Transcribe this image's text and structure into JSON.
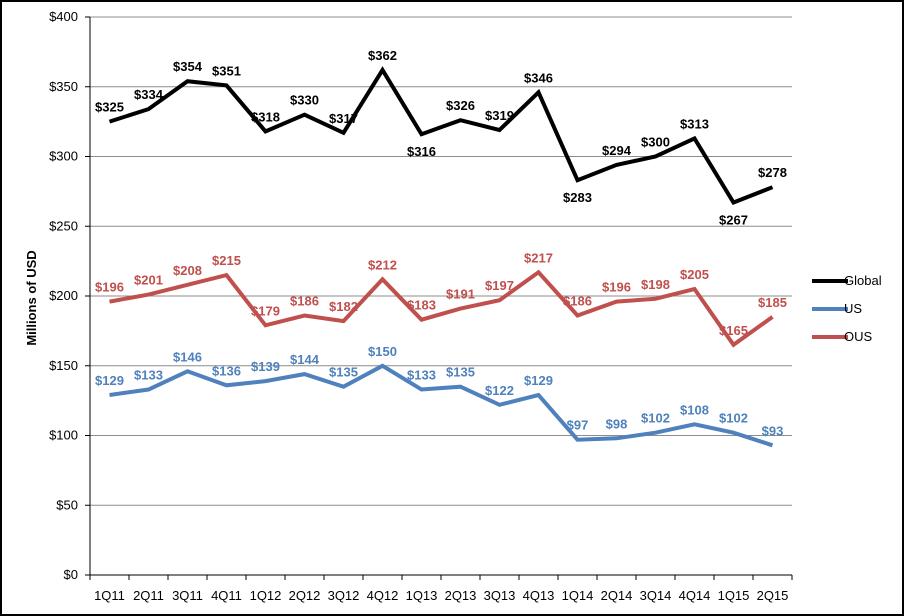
{
  "chart_data": {
    "type": "line",
    "title": "",
    "xlabel": "",
    "ylabel": "Millions of USD",
    "ylim": [
      0,
      400
    ],
    "yticks": [
      0,
      50,
      100,
      150,
      200,
      250,
      300,
      350,
      400
    ],
    "ytick_labels": [
      "$0",
      "$50",
      "$100",
      "$150",
      "$200",
      "$250",
      "$300",
      "$350",
      "$400"
    ],
    "grid": "horizontal",
    "legend_position": "right",
    "categories": [
      "1Q11",
      "2Q11",
      "3Q11",
      "4Q11",
      "1Q12",
      "2Q12",
      "3Q12",
      "4Q12",
      "1Q13",
      "2Q13",
      "3Q13",
      "4Q13",
      "1Q14",
      "2Q14",
      "3Q14",
      "4Q14",
      "1Q15",
      "2Q15"
    ],
    "series": [
      {
        "name": "Global",
        "color": "#000000",
        "values": [
          325,
          334,
          354,
          351,
          318,
          330,
          317,
          362,
          316,
          326,
          319,
          346,
          283,
          294,
          300,
          313,
          267,
          278
        ],
        "labels": [
          "$325",
          "$334",
          "$354",
          "$351",
          "$318",
          "$330",
          "$317",
          "$362",
          "$316",
          "$326",
          "$319",
          "$346",
          "$283",
          "$294",
          "$300",
          "$313",
          "$267",
          "$278"
        ],
        "label_pos": [
          "a",
          "a",
          "a",
          "a",
          "a",
          "a",
          "a",
          "a",
          "b",
          "a",
          "a",
          "a",
          "b",
          "a",
          "a",
          "a",
          "b",
          "a"
        ]
      },
      {
        "name": "US",
        "color": "#4f81bd",
        "values": [
          129,
          133,
          146,
          136,
          139,
          144,
          135,
          150,
          133,
          135,
          122,
          129,
          97,
          98,
          102,
          108,
          102,
          93
        ],
        "labels": [
          "$129",
          "$133",
          "$146",
          "$136",
          "$139",
          "$144",
          "$135",
          "$150",
          "$133",
          "$135",
          "$122",
          "$129",
          "$97",
          "$98",
          "$102",
          "$108",
          "$102",
          "$93"
        ],
        "label_pos": [
          "a",
          "a",
          "a",
          "a",
          "a",
          "a",
          "a",
          "a",
          "a",
          "a",
          "a",
          "a",
          "a",
          "a",
          "a",
          "a",
          "a",
          "a"
        ]
      },
      {
        "name": "OUS",
        "color": "#c0504d",
        "values": [
          196,
          201,
          208,
          215,
          179,
          186,
          182,
          212,
          183,
          191,
          197,
          217,
          186,
          196,
          198,
          205,
          165,
          185
        ],
        "labels": [
          "$196",
          "$201",
          "$208",
          "$215",
          "$179",
          "$186",
          "$182",
          "$212",
          "$183",
          "$191",
          "$197",
          "$217",
          "$186",
          "$196",
          "$198",
          "$205",
          "$165",
          "$185"
        ],
        "label_pos": [
          "a",
          "a",
          "a",
          "a",
          "a",
          "a",
          "a",
          "a",
          "a",
          "a",
          "a",
          "a",
          "a",
          "a",
          "a",
          "a",
          "a",
          "a"
        ]
      }
    ]
  }
}
